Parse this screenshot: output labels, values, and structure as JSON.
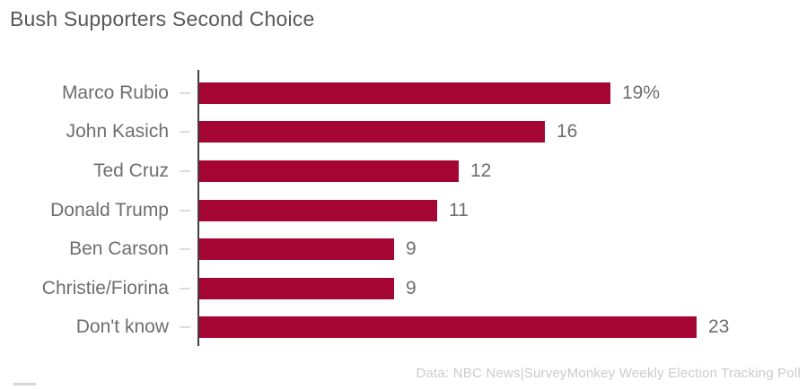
{
  "chart": {
    "title": "Bush Supporters Second Choice",
    "footer": "Data: NBC News|SurveyMonkey Weekly Election Tracking Poll",
    "colors": {
      "bar": "#a50532",
      "title_text": "#58585a",
      "label_text": "#6e6e6e",
      "value_text": "#6e6e6e",
      "footer_text": "#cbcbcb",
      "axis_line": "#404040",
      "tick_mark": "#dcdcdc",
      "background": "#ffffff"
    }
  },
  "chart_data": {
    "type": "bar",
    "orientation": "horizontal",
    "title": "Bush Supporters Second Choice",
    "categories": [
      "Marco Rubio",
      "John Kasich",
      "Ted Cruz",
      "Donald Trump",
      "Ben Carson",
      "Christie/Fiorina",
      "Don't know"
    ],
    "values": [
      19,
      16,
      12,
      11,
      9,
      9,
      23
    ],
    "value_labels": [
      "19%",
      "16",
      "12",
      "11",
      "9",
      "9",
      "23"
    ],
    "xlabel": "",
    "ylabel": "",
    "xlim": [
      0,
      23
    ],
    "grid": false,
    "legend": false,
    "annotation": "Data: NBC News|SurveyMonkey Weekly Election Tracking Poll"
  }
}
